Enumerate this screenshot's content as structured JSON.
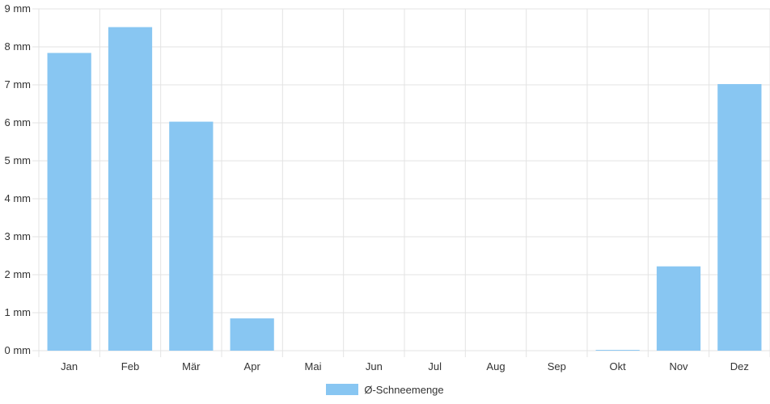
{
  "chart_data": {
    "type": "bar",
    "categories": [
      "Jan",
      "Feb",
      "Mär",
      "Apr",
      "Mai",
      "Jun",
      "Jul",
      "Aug",
      "Sep",
      "Okt",
      "Nov",
      "Dez"
    ],
    "series": [
      {
        "name": "Ø-Schneemenge",
        "values": [
          7.84,
          8.52,
          6.03,
          0.85,
          0,
          0,
          0,
          0,
          0,
          0.02,
          2.22,
          7.02
        ]
      }
    ],
    "y_ticks": [
      "0 mm",
      "1 mm",
      "2 mm",
      "3 mm",
      "4 mm",
      "5 mm",
      "6 mm",
      "7 mm",
      "8 mm",
      "9 mm"
    ],
    "ylim": [
      0,
      9
    ],
    "grid": true,
    "legend_position": "bottom",
    "colors": {
      "bar": "#88c6f2",
      "grid": "#e3e3e3",
      "text": "#333333"
    }
  }
}
